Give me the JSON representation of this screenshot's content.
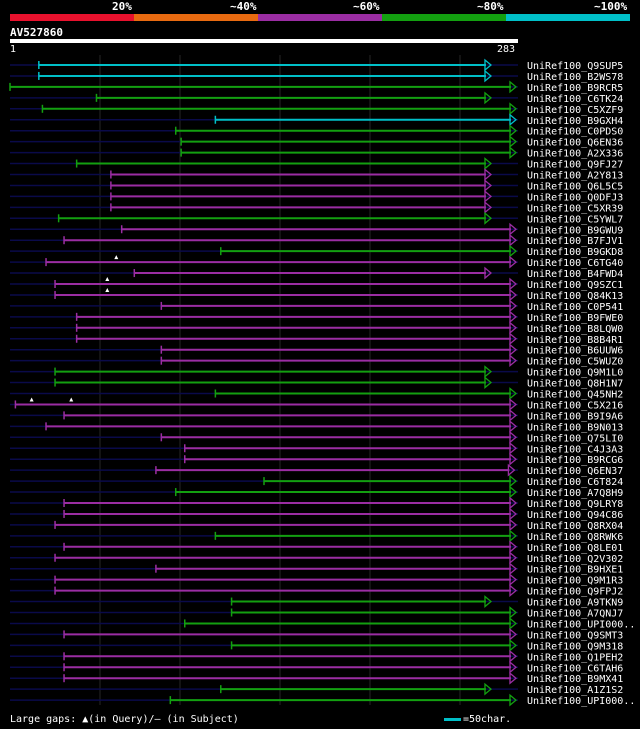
{
  "legend": {
    "segments": [
      {
        "label": "20%",
        "color": "#e8112d"
      },
      {
        "label": "~40%",
        "color": "#e86a10"
      },
      {
        "label": "~60%",
        "color": "#9b2da3"
      },
      {
        "label": "~80%",
        "color": "#13a010"
      },
      {
        "label": "~100%",
        "color": "#00bfc8"
      }
    ]
  },
  "query": {
    "id": "AV527860",
    "start": "1",
    "end": "283"
  },
  "footer": {
    "gaps_text": "Large gaps: ▲(in Query)/– (in Subject)",
    "scale_text": "=50char."
  },
  "colors": {
    "p60": "#9b2da3",
    "p80": "#13a010",
    "p100": "#00bfc8",
    "dim": "#0a0a4a"
  },
  "chart_data": {
    "type": "alignment",
    "query_length": 283,
    "hits": [
      {
        "name": "UniRef100_Q9SUP5",
        "start": 17,
        "end": 268,
        "identity": "~100%",
        "dim_start": 0
      },
      {
        "name": "UniRef100_B2WS78",
        "start": 17,
        "end": 268,
        "identity": "~100%",
        "dim_start": 0
      },
      {
        "name": "UniRef100_B9RCR5",
        "start": 1,
        "end": 283,
        "identity": "~80%",
        "dim_start": 0
      },
      {
        "name": "UniRef100_C6TK24",
        "start": 49,
        "end": 268,
        "identity": "~80%",
        "dim_start": 0
      },
      {
        "name": "UniRef100_C5XZF9",
        "start": 19,
        "end": 283,
        "identity": "~80%",
        "dim_start": 0
      },
      {
        "name": "UniRef100_B9GXH4",
        "start": 115,
        "end": 287,
        "identity": "~100%",
        "dim_start": 0
      },
      {
        "name": "UniRef100_C0PDS0",
        "start": 93,
        "end": 283,
        "identity": "~80%",
        "dim_start": 0
      },
      {
        "name": "UniRef100_Q6EN36",
        "start": 96,
        "end": 283,
        "identity": "~80%",
        "dim_start": 0
      },
      {
        "name": "UniRef100_A2X336",
        "start": 96,
        "end": 283,
        "identity": "~80%",
        "dim_start": 0
      },
      {
        "name": "UniRef100_Q9FJ27",
        "start": 38,
        "end": 268,
        "identity": "~80%",
        "dim_start": 0
      },
      {
        "name": "UniRef100_A2Y813",
        "start": 57,
        "end": 268,
        "identity": "~60%",
        "dim_start": 0
      },
      {
        "name": "UniRef100_Q6L5C5",
        "start": 57,
        "end": 268,
        "identity": "~60%",
        "dim_start": 0
      },
      {
        "name": "UniRef100_Q0DFJ3",
        "start": 57,
        "end": 268,
        "identity": "~60%",
        "dim_start": 0
      },
      {
        "name": "UniRef100_C5XR39",
        "start": 57,
        "end": 268,
        "identity": "~60%",
        "dim_start": 0
      },
      {
        "name": "UniRef100_C5YWL7",
        "start": 28,
        "end": 268,
        "identity": "~80%",
        "dim_start": 0
      },
      {
        "name": "UniRef100_B9GWU9",
        "start": 63,
        "end": 283,
        "identity": "~60%",
        "dim_start": 0
      },
      {
        "name": "UniRef100_B7FJV1",
        "start": 31,
        "end": 283,
        "identity": "~60%",
        "dim_start": 0
      },
      {
        "name": "UniRef100_B9GKD8",
        "start": 118,
        "end": 283,
        "identity": "~80%",
        "dim_start": 0
      },
      {
        "name": "UniRef100_C6TG40",
        "start": 21,
        "end": 283,
        "identity": "~60%",
        "dim_start": 0
      },
      {
        "name": "UniRef100_B4FWD4",
        "start": 70,
        "end": 268,
        "identity": "~60%",
        "dim_start": 0
      },
      {
        "name": "UniRef100_Q9SZC1",
        "start": 26,
        "end": 283,
        "identity": "~60%",
        "dim_start": 0
      },
      {
        "name": "UniRef100_Q84K13",
        "start": 26,
        "end": 283,
        "identity": "~60%",
        "dim_start": 0
      },
      {
        "name": "UniRef100_C0P541",
        "start": 85,
        "end": 283,
        "identity": "~60%",
        "dim_start": 0
      },
      {
        "name": "UniRef100_B9FWE0",
        "start": 38,
        "end": 283,
        "identity": "~60%",
        "dim_start": 0
      },
      {
        "name": "UniRef100_B8LQW0",
        "start": 38,
        "end": 283,
        "identity": "~60%",
        "dim_start": 0
      },
      {
        "name": "UniRef100_B8B4R1",
        "start": 38,
        "end": 283,
        "identity": "~60%",
        "dim_start": 0
      },
      {
        "name": "UniRef100_B6UUW6",
        "start": 85,
        "end": 283,
        "identity": "~60%",
        "dim_start": 0
      },
      {
        "name": "UniRef100_C5WUZ0",
        "start": 85,
        "end": 283,
        "identity": "~60%",
        "dim_start": 0
      },
      {
        "name": "UniRef100_Q9M1L0",
        "start": 26,
        "end": 268,
        "identity": "~80%",
        "dim_start": 0
      },
      {
        "name": "UniRef100_Q8H1N7",
        "start": 26,
        "end": 268,
        "identity": "~80%",
        "dim_start": 0
      },
      {
        "name": "UniRef100_Q45NH2",
        "start": 115,
        "end": 283,
        "identity": "~80%",
        "dim_start": 0
      },
      {
        "name": "UniRef100_C5X216",
        "start": 4,
        "end": 283,
        "identity": "~60%",
        "dim_start": 0
      },
      {
        "name": "UniRef100_B9I9A6",
        "start": 31,
        "end": 283,
        "identity": "~60%",
        "dim_start": 0
      },
      {
        "name": "UniRef100_B9N013",
        "start": 21,
        "end": 283,
        "identity": "~60%",
        "dim_start": 0
      },
      {
        "name": "UniRef100_Q75LI0",
        "start": 85,
        "end": 283,
        "identity": "~60%",
        "dim_start": 0
      },
      {
        "name": "UniRef100_C4J3A3",
        "start": 98,
        "end": 283,
        "identity": "~60%",
        "dim_start": 0
      },
      {
        "name": "UniRef100_B9RCG6",
        "start": 98,
        "end": 283,
        "identity": "~60%",
        "dim_start": 0
      },
      {
        "name": "UniRef100_Q6EN37",
        "start": 82,
        "end": 281,
        "identity": "~60%",
        "dim_start": 0
      },
      {
        "name": "UniRef100_C6T824",
        "start": 142,
        "end": 283,
        "identity": "~80%",
        "dim_start": 0
      },
      {
        "name": "UniRef100_A7Q8H9",
        "start": 93,
        "end": 283,
        "identity": "~80%",
        "dim_start": 0
      },
      {
        "name": "UniRef100_Q9LRY8",
        "start": 31,
        "end": 283,
        "identity": "~60%",
        "dim_start": 0
      },
      {
        "name": "UniRef100_Q94C86",
        "start": 31,
        "end": 283,
        "identity": "~60%",
        "dim_start": 0
      },
      {
        "name": "UniRef100_Q8RX04",
        "start": 26,
        "end": 283,
        "identity": "~60%",
        "dim_start": 0
      },
      {
        "name": "UniRef100_Q8RWK6",
        "start": 115,
        "end": 283,
        "identity": "~80%",
        "dim_start": 0
      },
      {
        "name": "UniRef100_Q8LE01",
        "start": 31,
        "end": 283,
        "identity": "~60%",
        "dim_start": 0
      },
      {
        "name": "UniRef100_Q2V302",
        "start": 26,
        "end": 283,
        "identity": "~60%",
        "dim_start": 0
      },
      {
        "name": "UniRef100_B9HXE1",
        "start": 82,
        "end": 283,
        "identity": "~60%",
        "dim_start": 0
      },
      {
        "name": "UniRef100_Q9M1R3",
        "start": 26,
        "end": 283,
        "identity": "~60%",
        "dim_start": 0
      },
      {
        "name": "UniRef100_Q9FPJ2",
        "start": 26,
        "end": 283,
        "identity": "~60%",
        "dim_start": 0
      },
      {
        "name": "UniRef100_A9TKN9",
        "start": 124,
        "end": 268,
        "identity": "~80%",
        "dim_start": 0
      },
      {
        "name": "UniRef100_A7QNJ7",
        "start": 124,
        "end": 283,
        "identity": "~80%",
        "dim_start": 0
      },
      {
        "name": "UniRef100_UPI000..",
        "start": 98,
        "end": 283,
        "identity": "~80%",
        "dim_start": 0
      },
      {
        "name": "UniRef100_Q9SMT3",
        "start": 31,
        "end": 283,
        "identity": "~60%",
        "dim_start": 0
      },
      {
        "name": "UniRef100_Q9M318",
        "start": 124,
        "end": 283,
        "identity": "~80%",
        "dim_start": 0
      },
      {
        "name": "UniRef100_Q1PEH2",
        "start": 31,
        "end": 283,
        "identity": "~60%",
        "dim_start": 0
      },
      {
        "name": "UniRef100_C6TAH6",
        "start": 31,
        "end": 283,
        "identity": "~60%",
        "dim_start": 0
      },
      {
        "name": "UniRef100_B9MX41",
        "start": 31,
        "end": 283,
        "identity": "~60%",
        "dim_start": 0
      },
      {
        "name": "UniRef100_A1Z1S2",
        "start": 118,
        "end": 268,
        "identity": "~80%",
        "dim_start": 0
      },
      {
        "name": "UniRef100_UPI000..",
        "start": 90,
        "end": 283,
        "identity": "~80%",
        "dim_start": 0
      }
    ],
    "gap_markers": [
      {
        "row": 18,
        "pos": 60
      },
      {
        "row": 20,
        "pos": 55
      },
      {
        "row": 21,
        "pos": 55
      },
      {
        "row": 31,
        "pos": 13
      },
      {
        "row": 31,
        "pos": 35
      }
    ]
  }
}
